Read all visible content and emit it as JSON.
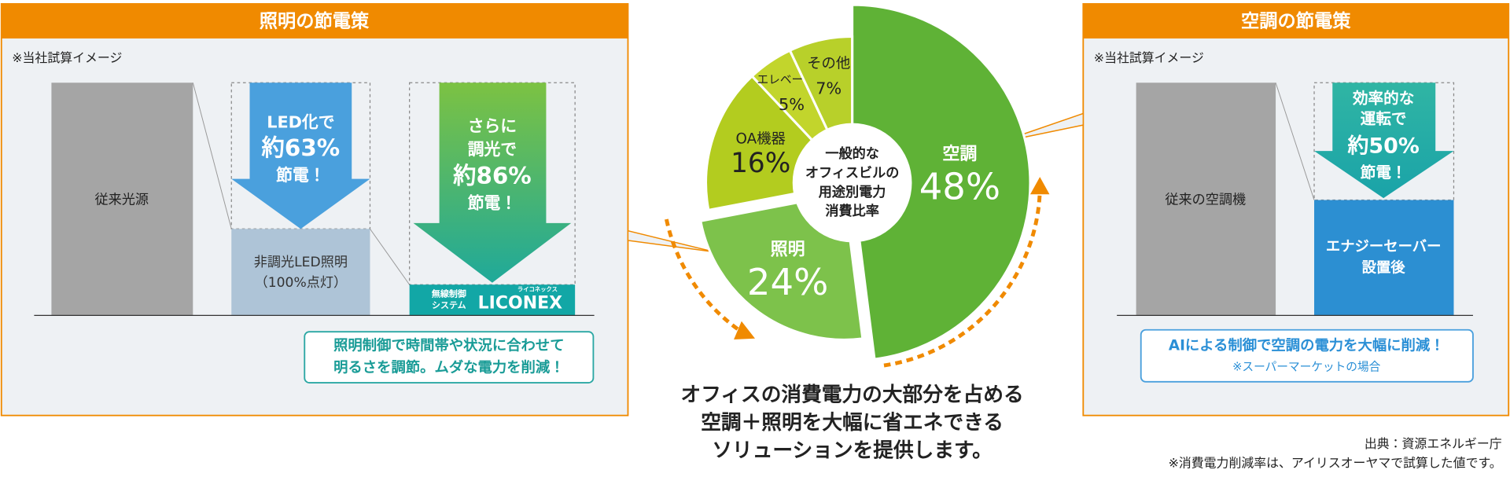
{
  "chart_data": {
    "type": "pie",
    "center_label": [
      "一般的な",
      "オフィスビルの",
      "用途別電力",
      "消費比率"
    ],
    "categories": [
      "空調",
      "照明",
      "OA機器",
      "エレベーター",
      "その他"
    ],
    "values": [
      48,
      24,
      16,
      5,
      7
    ],
    "value_labels": [
      "48%",
      "24%",
      "16%",
      "5%",
      "7%"
    ],
    "colors": [
      "#5fb236",
      "#7dc24b",
      "#b3cc1f",
      "#c2d52c",
      "#b8d02a"
    ]
  },
  "lighting": {
    "title": "照明の節電策",
    "note": "※当社試算イメージ",
    "conventional": "従来光源",
    "led_arrow": [
      "LED化で",
      "約63%",
      "節電！"
    ],
    "led_label": [
      "非調光LED照明",
      "（100%点灯）"
    ],
    "dim_arrow": [
      "さらに",
      "調光で",
      "約86%",
      "節電！"
    ],
    "system": [
      "無線制御",
      "システム"
    ],
    "brand": "LICONEX",
    "brand_reading": "ライコネックス",
    "callout": [
      "照明制御で時間帯や状況に合わせて",
      "明るさを調節。ムダな電力を削減！"
    ]
  },
  "aircon": {
    "title": "空調の節電策",
    "note": "※当社試算イメージ",
    "conventional": "従来の空調機",
    "arrow": [
      "効率的な",
      "運転で",
      "約50%",
      "節電！"
    ],
    "saver": [
      "エナジーセーバー",
      "設置後"
    ],
    "callout": [
      "AIによる制御で空調の電力を大幅に削減！",
      "※スーパーマーケットの場合"
    ]
  },
  "message": [
    "オフィスの消費電力の大部分を占める",
    "空調＋照明を大幅に省エネできる",
    "ソリューションを提供します。"
  ],
  "source": [
    "出典：資源エネルギー庁",
    "※消費電力削減率は、アイリスオーヤマで試算した値です。"
  ]
}
